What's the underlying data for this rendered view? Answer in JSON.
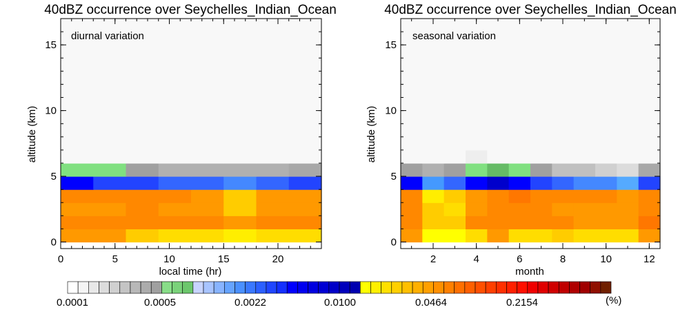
{
  "chart_data": [
    {
      "type": "heatmap",
      "title": "40dBZ occurrence over Seychelles_Indian_Ocean",
      "panel_label": "diurnal variation",
      "xlabel": "local time (hr)",
      "ylabel": "altitude (km)",
      "xlim": [
        0,
        24
      ],
      "ylim": [
        -0.5,
        17
      ],
      "xticks": [
        0,
        5,
        10,
        15,
        20
      ],
      "yticks": [
        0,
        5,
        10,
        15
      ],
      "x_bin_edges": [
        0,
        3,
        6,
        9,
        12,
        15,
        18,
        21,
        24
      ],
      "y_bin_edges": [
        0,
        1,
        2,
        3,
        4,
        5,
        6,
        17
      ],
      "cells_colors": [
        [
          "#ff9900",
          "#ff9900",
          "#ffcc00",
          "#ffdd00",
          "#ffdd00",
          "#ffee00",
          "#ffdd00",
          "#ffdd00"
        ],
        [
          "#ff8800",
          "#ff8800",
          "#ff8800",
          "#ff8800",
          "#ff8800",
          "#ff9900",
          "#ff8800",
          "#ff8800"
        ],
        [
          "#ff9900",
          "#ff9900",
          "#ff8800",
          "#ff9900",
          "#ff9900",
          "#ffcc00",
          "#ff9900",
          "#ff9900"
        ],
        [
          "#ff8800",
          "#ff8800",
          "#ff8800",
          "#ff8800",
          "#ff9900",
          "#ffcc00",
          "#ff9900",
          "#ff9900"
        ],
        [
          "#0000ff",
          "#2244ff",
          "#2244ff",
          "#3366ff",
          "#3366ff",
          "#4488ff",
          "#3366ff",
          "#2244ff"
        ],
        [
          "#80e080",
          "#80e080",
          "#a0a0a0",
          "#b0b0b0",
          "#b0b0b0",
          "#b0b0b0",
          "#b0b0b0",
          "#a8a8a8"
        ],
        [
          "#f8f8f8",
          "#f8f8f8",
          "#f8f8f8",
          "#f8f8f8",
          "#f8f8f8",
          "#f8f8f8",
          "#f8f8f8",
          "#f8f8f8"
        ]
      ]
    },
    {
      "type": "heatmap",
      "title": "40dBZ occurrence over Seychelles_Indian_Ocean",
      "panel_label": "seasonal variation",
      "xlabel": "month",
      "ylabel": "altitude (km)",
      "xlim": [
        0.5,
        12.5
      ],
      "ylim": [
        -0.5,
        17
      ],
      "xticks": [
        2,
        4,
        6,
        8,
        10,
        12
      ],
      "yticks": [
        0,
        5,
        10,
        15
      ],
      "x_bin_edges": [
        0.5,
        1.5,
        2.5,
        3.5,
        4.5,
        5.5,
        6.5,
        7.5,
        8.5,
        9.5,
        10.5,
        11.5,
        12.5
      ],
      "y_bin_edges": [
        0,
        1,
        2,
        3,
        4,
        5,
        6,
        7,
        17
      ],
      "cells_colors": [
        [
          "#ff9900",
          "#ffff00",
          "#ffff00",
          "#ffdd00",
          "#ff9900",
          "#ffdd00",
          "#ffdd00",
          "#ffcc00",
          "#ffdd00",
          "#ffdd00",
          "#ffdd00",
          "#ff9900"
        ],
        [
          "#ff8800",
          "#ffcc00",
          "#ffcc00",
          "#ff8800",
          "#ff8800",
          "#ff8800",
          "#ff8800",
          "#ff8800",
          "#ff9900",
          "#ff9900",
          "#ff9900",
          "#ff7700"
        ],
        [
          "#ff8800",
          "#ffcc00",
          "#ffdd00",
          "#ff9900",
          "#ff8800",
          "#ff8800",
          "#ff8800",
          "#ff9900",
          "#ff9900",
          "#ff9900",
          "#ff9900",
          "#ff8800"
        ],
        [
          "#ff8800",
          "#ffee00",
          "#ffcc00",
          "#ff9900",
          "#ff8800",
          "#ff7700",
          "#ff8800",
          "#ff8800",
          "#ff8800",
          "#ff8800",
          "#ff9900",
          "#ff8800"
        ],
        [
          "#0000ff",
          "#4499ff",
          "#3366ff",
          "#0000ff",
          "#0000cc",
          "#0000ff",
          "#2244ff",
          "#3366ff",
          "#4488ff",
          "#4488ff",
          "#55aaff",
          "#2244ff"
        ],
        [
          "#a0a0a0",
          "#b0b0b0",
          "#a0a0a0",
          "#80e080",
          "#66bb66",
          "#80e080",
          "#a0a0a0",
          "#c0c0c0",
          "#c0c0c0",
          "#d0d0d0",
          "#dcdcdc",
          "#a8a8a8"
        ],
        [
          "#f8f8f8",
          "#f8f8f8",
          "#f8f8f8",
          "#eeeeee",
          "#f8f8f8",
          "#f8f8f8",
          "#f8f8f8",
          "#f8f8f8",
          "#f8f8f8",
          "#f8f8f8",
          "#f8f8f8",
          "#f8f8f8"
        ],
        [
          "#f8f8f8",
          "#f8f8f8",
          "#f8f8f8",
          "#f8f8f8",
          "#f8f8f8",
          "#f8f8f8",
          "#f8f8f8",
          "#f8f8f8",
          "#f8f8f8",
          "#f8f8f8",
          "#f8f8f8",
          "#f8f8f8"
        ]
      ]
    }
  ],
  "colorbar": {
    "colors": [
      "#ffffff",
      "#f4f4f4",
      "#e8e8e8",
      "#dcdcdc",
      "#d0d0d0",
      "#c4c4c4",
      "#b8b8b8",
      "#acacac",
      "#a0a0a0",
      "#88dd88",
      "#7ad27a",
      "#6cc76c",
      "#c8d4ff",
      "#a8c4ff",
      "#88b4ff",
      "#66a4ff",
      "#4a90ff",
      "#3a78ff",
      "#2c60ff",
      "#2046ff",
      "#1430ff",
      "#0000ff",
      "#0000f0",
      "#0000e0",
      "#0000d4",
      "#0000c8",
      "#0000bc",
      "#0000b0",
      "#ffff00",
      "#fff000",
      "#ffe000",
      "#ffd000",
      "#ffc000",
      "#ffb000",
      "#ffa000",
      "#ff9000",
      "#ff8000",
      "#ff7000",
      "#ff6000",
      "#ff5000",
      "#ff4000",
      "#ff3000",
      "#ff2000",
      "#ff1000",
      "#f00000",
      "#e00000",
      "#d00000",
      "#c00000",
      "#b00000",
      "#a00000",
      "#901000",
      "#702000"
    ],
    "tick_labels": [
      "0.0001",
      "0.0005",
      "0.0022",
      "0.0100",
      "0.0464",
      "0.2154"
    ],
    "unit": "(%)"
  }
}
